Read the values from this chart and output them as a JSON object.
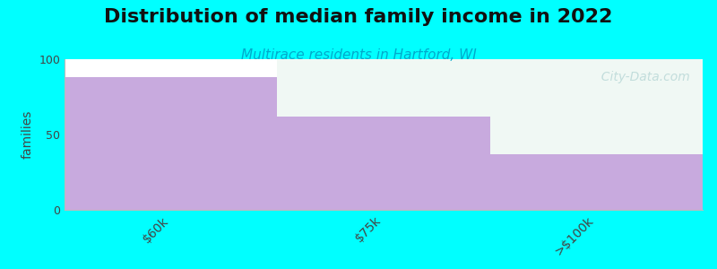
{
  "title": "Distribution of median family income in 2022",
  "subtitle": "Multirace residents in Hartford, WI",
  "categories": [
    "$60k",
    "$75k",
    ">$100k"
  ],
  "values": [
    88,
    62,
    37
  ],
  "bar_color": "#c8aade",
  "background_color": "#00ffff",
  "plot_bg_color": "#ffffff",
  "light_bg_color": "#f0f8f4",
  "ylabel": "families",
  "ylim": [
    0,
    100
  ],
  "yticks": [
    0,
    50,
    100
  ],
  "title_fontsize": 16,
  "subtitle_fontsize": 11,
  "subtitle_color": "#00aacc",
  "watermark_text": "  City-Data.com",
  "bar_width": 1.0
}
